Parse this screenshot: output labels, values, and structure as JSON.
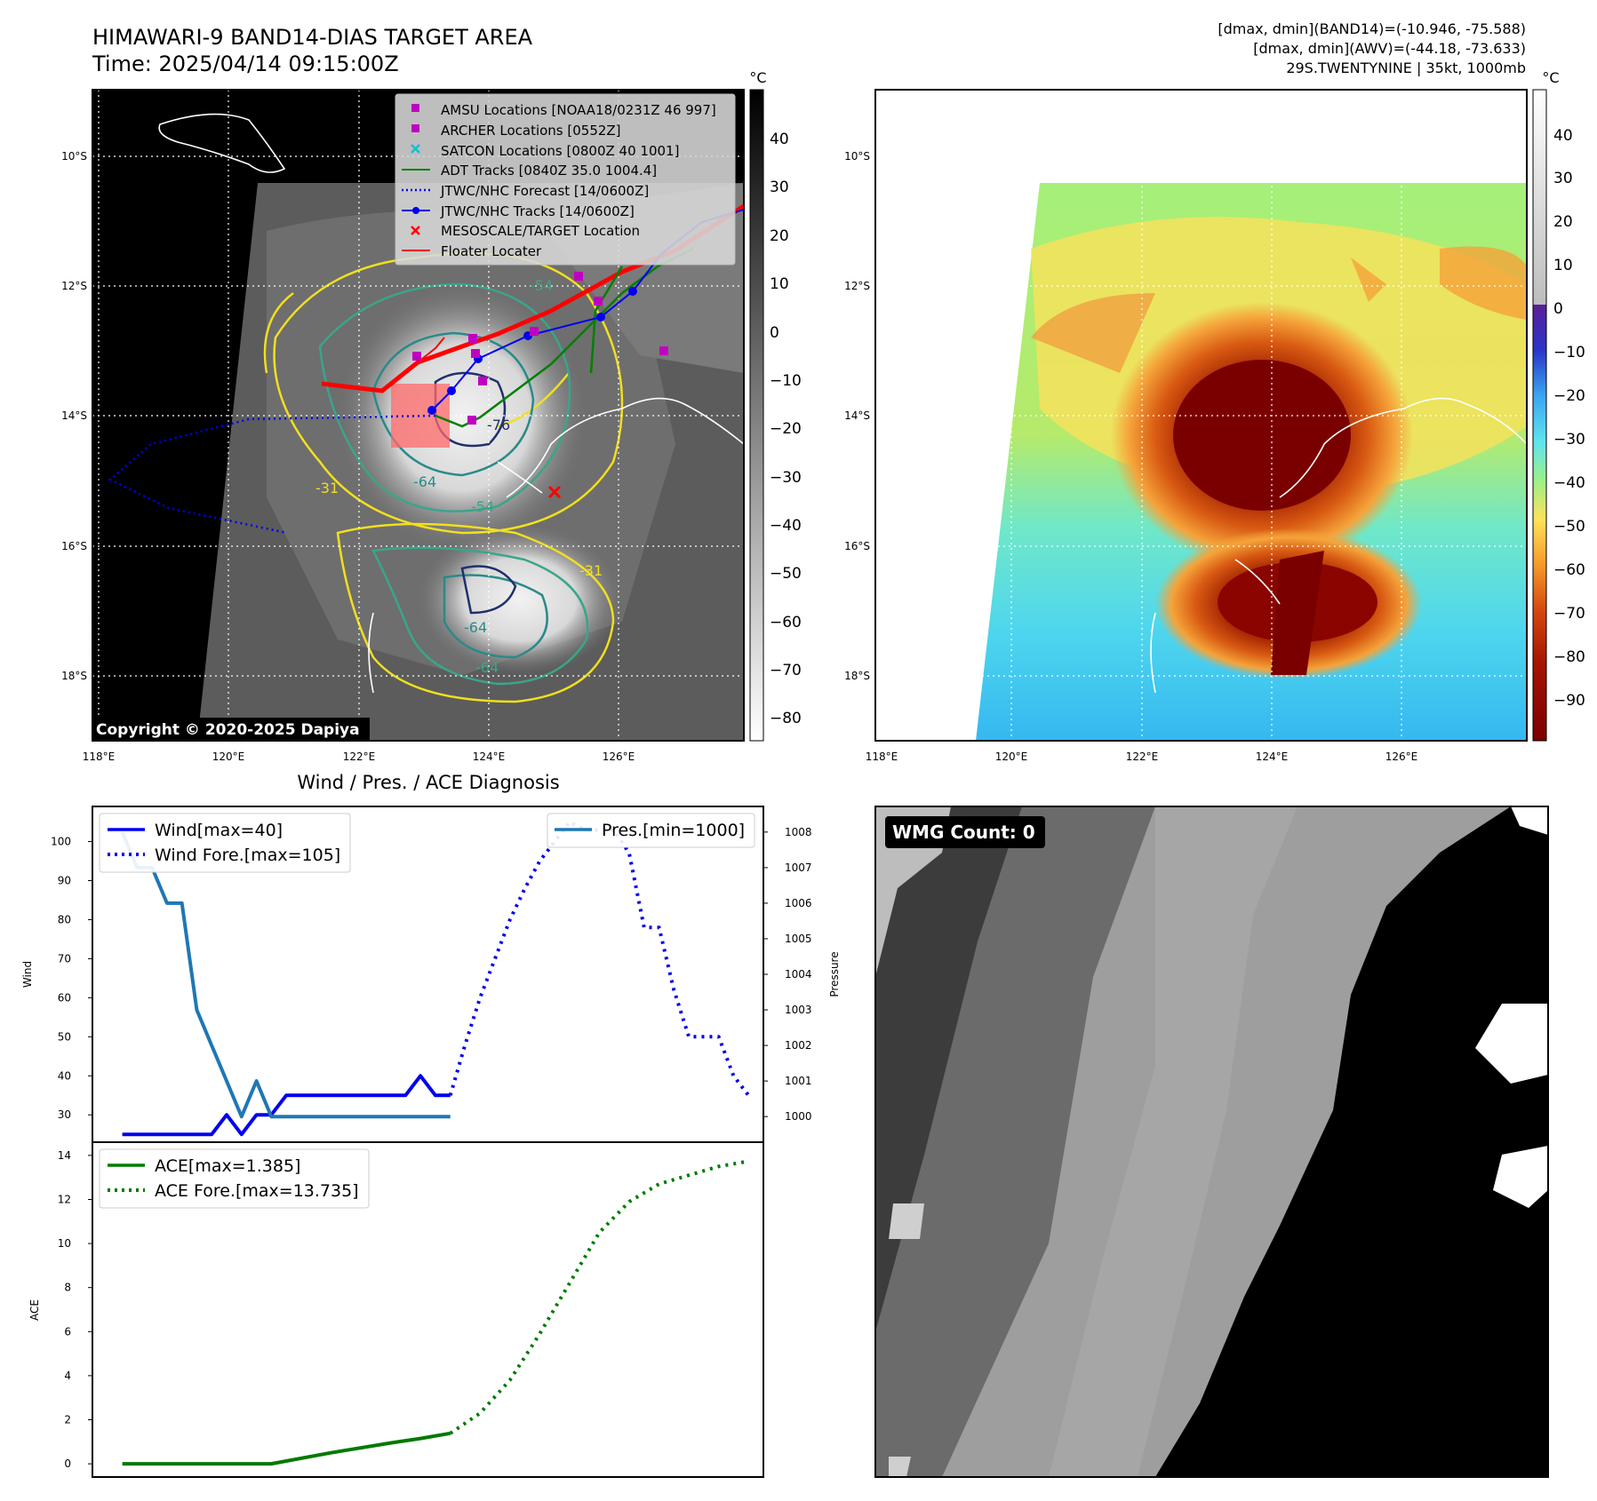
{
  "header": {
    "title": "HIMAWARI-9 BAND14-DIAS TARGET AREA",
    "time": "Time: 2025/04/14 09:15:00Z",
    "stats_band14": "[dmax, dmin](BAND14)=(-10.946, -75.588)",
    "stats_awv": "[dmax, dmin](AWV)=(-44.18, -73.633)",
    "storm": "29S.TWENTYNINE | 35kt, 1000mb"
  },
  "copyright": "Copyright © 2020-2025 Dapiya",
  "colors": {
    "wind": "#0000ee",
    "pressure": "#1f77b4",
    "ace": "#007a00",
    "amsu": "#c000c0",
    "satcon": "#17becf",
    "floater": "#ff0000"
  },
  "map": {
    "lon_ticks": [
      "118°E",
      "120°E",
      "122°E",
      "124°E",
      "126°E"
    ],
    "lat_ticks": [
      "10°S",
      "12°S",
      "14°S",
      "16°S",
      "18°S"
    ],
    "legend": [
      {
        "label": "AMSU Locations [NOAA18/0231Z 46 997]",
        "marker": "square",
        "color": "#c000c0"
      },
      {
        "label": "ARCHER Locations [0552Z]",
        "marker": "square",
        "color": "#c000c0"
      },
      {
        "label": "SATCON Locations [0800Z 40 1001]",
        "marker": "x",
        "color": "#17becf"
      },
      {
        "label": "ADT Tracks [0840Z 35.0 1004.4]",
        "marker": "line",
        "color": "#008000"
      },
      {
        "label": "JTWC/NHC Forecast [14/0600Z]",
        "marker": "dotted",
        "color": "#0000ee"
      },
      {
        "label": "JTWC/NHC Tracks [14/0600Z]",
        "marker": "line-dot",
        "color": "#0000ee"
      },
      {
        "label": "MESOSCALE/TARGET Location",
        "marker": "x",
        "color": "#ff0000"
      },
      {
        "label": "Floater Locater",
        "marker": "line",
        "color": "#ff0000"
      }
    ],
    "contour_labels": [
      "-31",
      "-54",
      "-64",
      "-76",
      "-54",
      "-64",
      "-31",
      "-64",
      "-64"
    ]
  },
  "gray_colorbar": {
    "unit": "°C",
    "ticks": [
      "40",
      "30",
      "20",
      "10",
      "0",
      "−10",
      "−20",
      "−30",
      "−40",
      "−50",
      "−60",
      "−70",
      "−80"
    ]
  },
  "color_colorbar": {
    "unit": "°C",
    "ticks": [
      "40",
      "30",
      "20",
      "10",
      "0",
      "−10",
      "−20",
      "−30",
      "−40",
      "−50",
      "−60",
      "−70",
      "−80",
      "−90"
    ]
  },
  "wmg": {
    "label": "WMG Count: 0"
  },
  "chart_data": [
    {
      "type": "line",
      "title": "Wind / Pres. / ACE Diagnosis",
      "ylabel": "Wind",
      "y2label": "Pressure",
      "ylim": [
        23,
        109
      ],
      "y2lim": [
        999.28,
        1008.72
      ],
      "yticks": [
        30,
        40,
        50,
        60,
        70,
        80,
        90,
        100
      ],
      "y2ticks": [
        1000,
        1001,
        1002,
        1003,
        1004,
        1005,
        1006,
        1007,
        1008
      ],
      "xlim": [
        -2,
        43
      ],
      "series": [
        {
          "name": "Wind[max=40]",
          "axis": "left",
          "style": "solid",
          "x": [
            0,
            1,
            2,
            3,
            4,
            5,
            6,
            7,
            8,
            9,
            10,
            11,
            12,
            13,
            14,
            15,
            16,
            17,
            18,
            19,
            20,
            21,
            22
          ],
          "y": [
            25,
            25,
            25,
            25,
            25,
            25,
            25,
            30,
            25,
            30,
            30,
            35,
            35,
            35,
            35,
            35,
            35,
            35,
            35,
            35,
            40,
            35,
            35
          ]
        },
        {
          "name": "Wind Fore.[max=105]",
          "axis": "left",
          "style": "dotted",
          "x": [
            22,
            23,
            24,
            25,
            26,
            27,
            28,
            29,
            30,
            31,
            32,
            33,
            34,
            35,
            36,
            37,
            38,
            39,
            40,
            41,
            42
          ],
          "y": [
            35,
            48,
            60,
            70,
            80,
            88,
            95,
            100,
            105,
            103,
            103,
            103,
            97,
            78,
            78,
            62,
            50,
            50,
            50,
            40,
            35
          ]
        },
        {
          "name": "Pres.[min=1000]",
          "axis": "right",
          "style": "solid",
          "x": [
            0,
            1,
            2,
            3,
            4,
            5,
            6,
            7,
            8,
            9,
            10,
            11,
            12,
            13,
            14,
            15,
            16,
            17,
            18,
            19,
            20,
            21,
            22
          ],
          "y": [
            1008,
            1007,
            1007,
            1006,
            1006,
            1003,
            1002,
            1001,
            1000,
            1001,
            1000,
            1000,
            1000,
            1000,
            1000,
            1000,
            1000,
            1000,
            1000,
            1000,
            1000,
            1000,
            1000
          ]
        }
      ]
    },
    {
      "type": "line",
      "ylabel": "ACE",
      "ylim": [
        -0.6,
        14.6
      ],
      "yticks": [
        0,
        2,
        4,
        6,
        8,
        10,
        12,
        14
      ],
      "xlim": [
        -2,
        43
      ],
      "series": [
        {
          "name": "ACE[max=1.385]",
          "style": "solid",
          "x": [
            0,
            5,
            10,
            14,
            18,
            20,
            22
          ],
          "y": [
            0,
            0,
            0,
            0.5,
            0.95,
            1.15,
            1.385
          ]
        },
        {
          "name": "ACE Fore.[max=13.735]",
          "style": "dotted",
          "x": [
            22,
            24,
            26,
            28,
            30,
            32,
            34,
            36,
            38,
            40,
            42
          ],
          "y": [
            1.385,
            2.3,
            3.8,
            5.9,
            8.2,
            10.5,
            11.9,
            12.7,
            13.1,
            13.5,
            13.735
          ]
        }
      ]
    }
  ]
}
